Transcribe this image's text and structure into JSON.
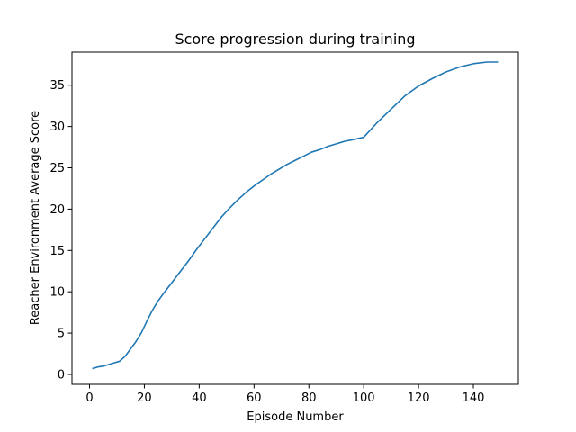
{
  "chart_data": {
    "type": "line",
    "title": "Score progression during training",
    "xlabel": "Episode Number",
    "ylabel": "Reacher Environment Average Score",
    "xlim": [
      -6.4,
      156.4
    ],
    "ylim": [
      -1.2,
      39.0
    ],
    "xticks": [
      0,
      20,
      40,
      60,
      80,
      100,
      120,
      140
    ],
    "yticks": [
      0,
      5,
      10,
      15,
      20,
      25,
      30,
      35
    ],
    "grid": false,
    "line_color": "#1f77b4",
    "series": [
      {
        "x": [
          1,
          3,
          5,
          7,
          9,
          11,
          13,
          15,
          17,
          19,
          21,
          23,
          25,
          27,
          30,
          33,
          36,
          39,
          42,
          45,
          48,
          51,
          54,
          57,
          60,
          63,
          66,
          69,
          72,
          75,
          78,
          81,
          84,
          87,
          90,
          93,
          96,
          100,
          105,
          110,
          115,
          120,
          125,
          130,
          135,
          140,
          145,
          149
        ],
        "values": [
          0.7,
          0.9,
          1.0,
          1.2,
          1.4,
          1.6,
          2.2,
          3.1,
          4.0,
          5.1,
          6.5,
          7.8,
          8.9,
          9.8,
          11.1,
          12.4,
          13.7,
          15.1,
          16.4,
          17.7,
          19.0,
          20.1,
          21.1,
          22.0,
          22.8,
          23.5,
          24.2,
          24.8,
          25.4,
          25.9,
          26.4,
          26.9,
          27.2,
          27.6,
          27.9,
          28.2,
          28.4,
          28.7,
          30.5,
          32.1,
          33.7,
          34.9,
          35.8,
          36.6,
          37.2,
          37.6,
          37.8,
          37.8
        ]
      }
    ]
  }
}
